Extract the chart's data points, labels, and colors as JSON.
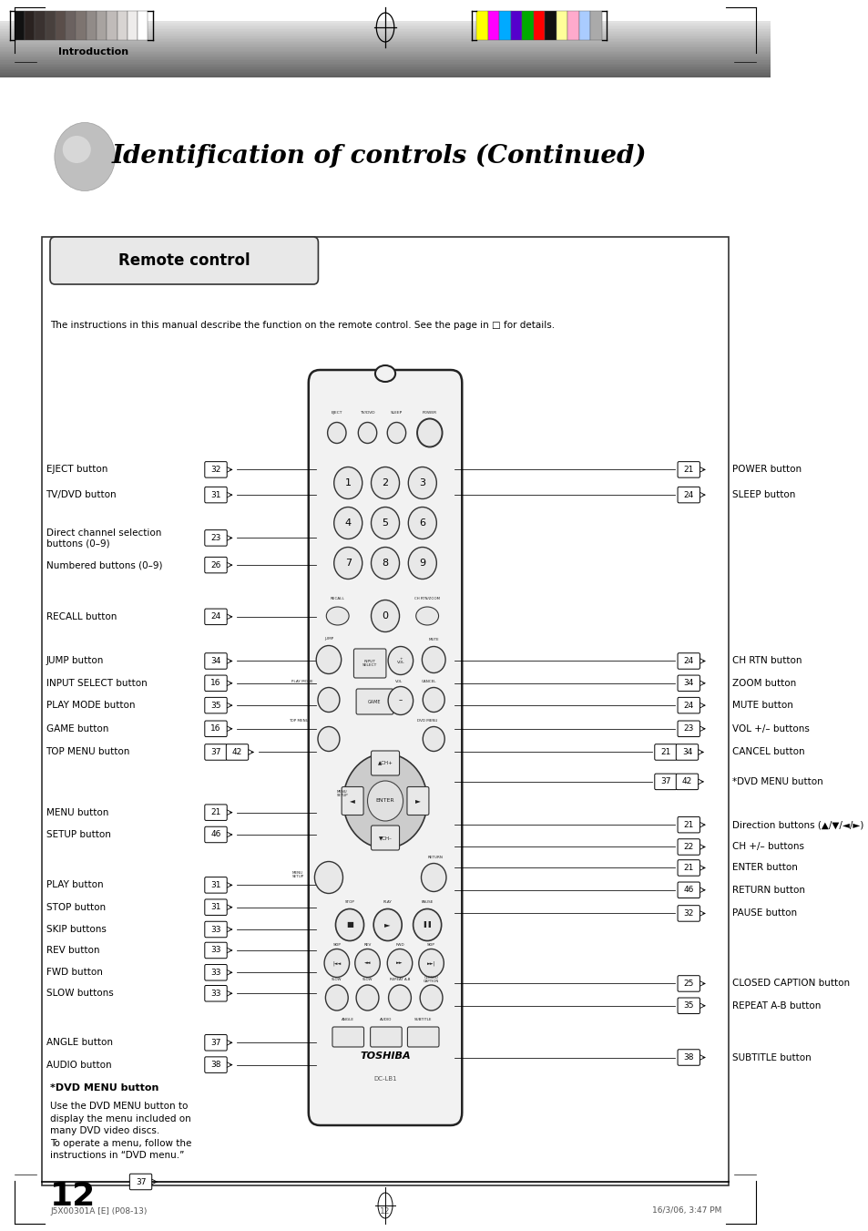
{
  "page_width": 9.54,
  "page_height": 13.51,
  "bg_color": "#ffffff",
  "header_text": "Introduction",
  "title_text": "Identification of controls (Continued)",
  "section_title": "Remote control",
  "instruction_text": "The instructions in this manual describe the function on the remote control. See the page in □ for details.",
  "color_bars_left": [
    "#111111",
    "#2a2220",
    "#3a3230",
    "#48403d",
    "#5a4e4a",
    "#6b6260",
    "#7d7470",
    "#918b88",
    "#a8a3a0",
    "#c0bbb9",
    "#d8d4d2",
    "#eeeceb",
    "#ffffff"
  ],
  "color_bars_right": [
    "#ffff00",
    "#ff00ff",
    "#00aaff",
    "#5500cc",
    "#00aa00",
    "#ff0000",
    "#111111",
    "#ffff99",
    "#ffaacc",
    "#aaccff",
    "#aaaaaa"
  ],
  "left_label_data": [
    [
      "EJECT button",
      "32",
      0.6185
    ],
    [
      "TV/DVD button",
      "31",
      0.598
    ],
    [
      "Direct channel selection\nbuttons (0–9)",
      "23",
      0.563
    ],
    [
      "Numbered buttons (0–9)",
      "26",
      0.541
    ],
    [
      "RECALL button",
      "24",
      0.499
    ],
    [
      "JUMP button",
      "34",
      0.463
    ],
    [
      "INPUT SELECT button",
      "16",
      0.445
    ],
    [
      "PLAY MODE button",
      "35",
      0.427
    ],
    [
      "GAME button",
      "16",
      0.408
    ],
    [
      "TOP MENU button",
      "37、42",
      0.389
    ],
    [
      "MENU button",
      "21",
      0.34
    ],
    [
      "SETUP button",
      "46",
      0.322
    ],
    [
      "PLAY button",
      "31",
      0.281
    ],
    [
      "STOP button",
      "31",
      0.263
    ],
    [
      "SKIP buttons",
      "33",
      0.245
    ],
    [
      "REV button",
      "33",
      0.228
    ],
    [
      "FWD button",
      "33",
      0.21
    ],
    [
      "SLOW buttons",
      "33",
      0.193
    ],
    [
      "ANGLE button",
      "37",
      0.153
    ],
    [
      "AUDIO button",
      "38",
      0.135
    ]
  ],
  "right_label_data": [
    [
      "POWER button",
      "21",
      0.6185
    ],
    [
      "SLEEP button",
      "24",
      0.598
    ],
    [
      "CH RTN button",
      "24",
      0.463
    ],
    [
      "ZOOM button",
      "34",
      0.445
    ],
    [
      "MUTE button",
      "24",
      0.427
    ],
    [
      "VOL +/– buttons",
      "23",
      0.408
    ],
    [
      "CANCEL button",
      "21、34",
      0.389
    ],
    [
      "*DVD MENU button",
      "37、42",
      0.365
    ],
    [
      "Direction buttons (▲/▼/◄/►)",
      "21",
      0.33
    ],
    [
      "CH +/– buttons",
      "22",
      0.312
    ],
    [
      "ENTER button",
      "21",
      0.295
    ],
    [
      "RETURN button",
      "46",
      0.277
    ],
    [
      "PAUSE button",
      "32",
      0.258
    ],
    [
      "CLOSED CAPTION button",
      "25",
      0.201
    ],
    [
      "REPEAT A-B button",
      "35",
      0.183
    ],
    [
      "SUBTITLE button",
      "38",
      0.141
    ]
  ],
  "footnote_title": "*DVD MENU button",
  "footnote_body": "Use the DVD MENU button to\ndisplay the menu included on\nmany DVD video discs.\nTo operate a menu, follow the\ninstructions in “DVD menu.”",
  "footnote_page": "37",
  "page_number": "12",
  "footer_left": "J5X00301A [E] (P08-13)",
  "footer_center": "12",
  "footer_right": "16/3/06, 3:47 PM"
}
